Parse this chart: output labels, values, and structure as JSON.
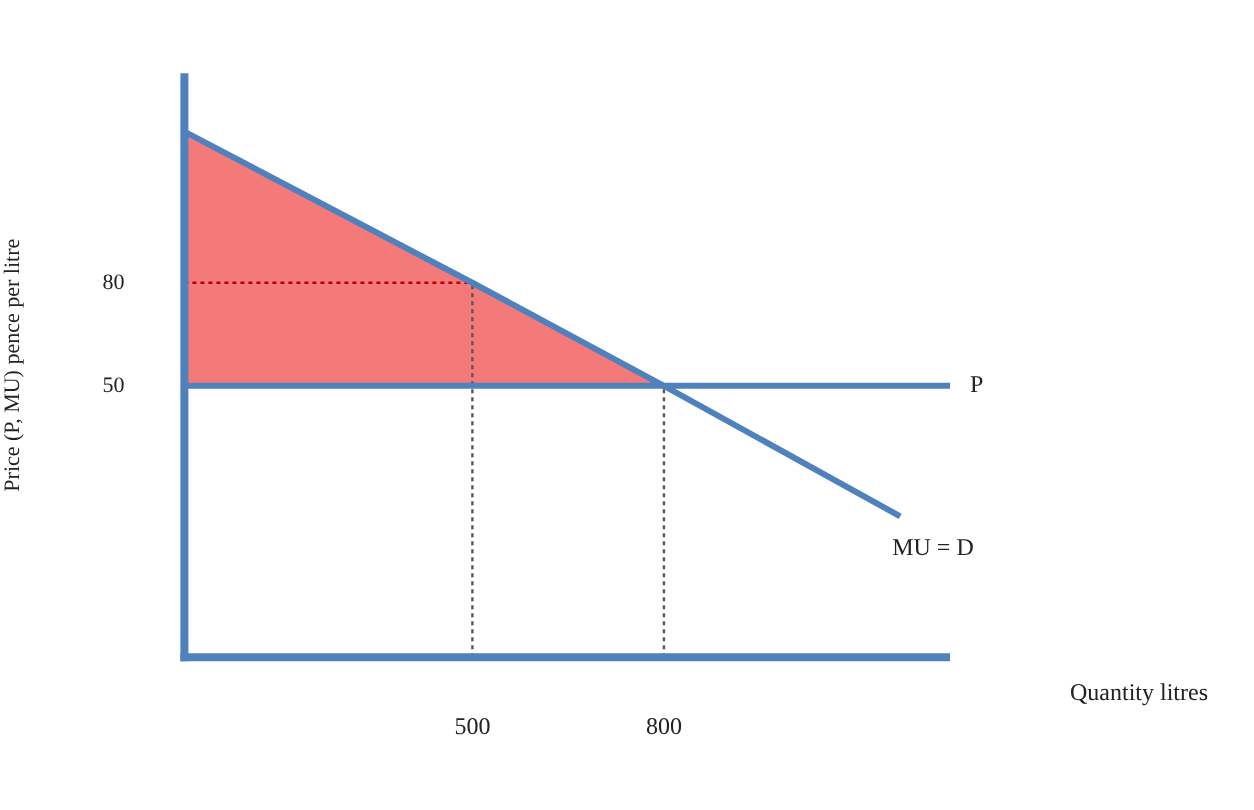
{
  "chart_data": {
    "type": "line",
    "xlabel": "Quantity litres",
    "ylabel": "Price (P, MU) pence per litre",
    "xlim": [
      49,
      1248
    ],
    "ylim": [
      -29,
      141
    ],
    "xticks": [
      500,
      800
    ],
    "yticks": [
      50,
      80
    ],
    "grid": false,
    "legend": false,
    "marker": "none",
    "ref_lines": [
      {
        "axis": "y",
        "value": -29,
        "color": "#4f81bd"
      },
      {
        "axis": "x",
        "value": 49,
        "color": "#4f81bd"
      }
    ],
    "series": [
      {
        "type": "area",
        "color": "#f47a7a",
        "x": [
          49,
          800,
          49
        ],
        "values": [
          124,
          50,
          50
        ]
      },
      {
        "name": "P",
        "color": "#4f81bd",
        "x": [
          49,
          1248
        ],
        "values": [
          50,
          50
        ]
      },
      {
        "name": "MU = D",
        "color": "#4f81bd",
        "x": [
          49,
          500,
          800,
          1170
        ],
        "values": [
          124,
          80,
          50,
          12
        ]
      },
      {
        "color": "#c00000",
        "line_style": "dotted",
        "x": [
          49,
          500
        ],
        "values": [
          80,
          80
        ]
      },
      {
        "color": "#555555",
        "line_style": "dotted",
        "x": [
          500,
          500
        ],
        "values": [
          -29,
          80
        ]
      },
      {
        "color": "#555555",
        "line_style": "dotted",
        "x": [
          800,
          800
        ],
        "values": [
          -29,
          50
        ]
      }
    ]
  }
}
